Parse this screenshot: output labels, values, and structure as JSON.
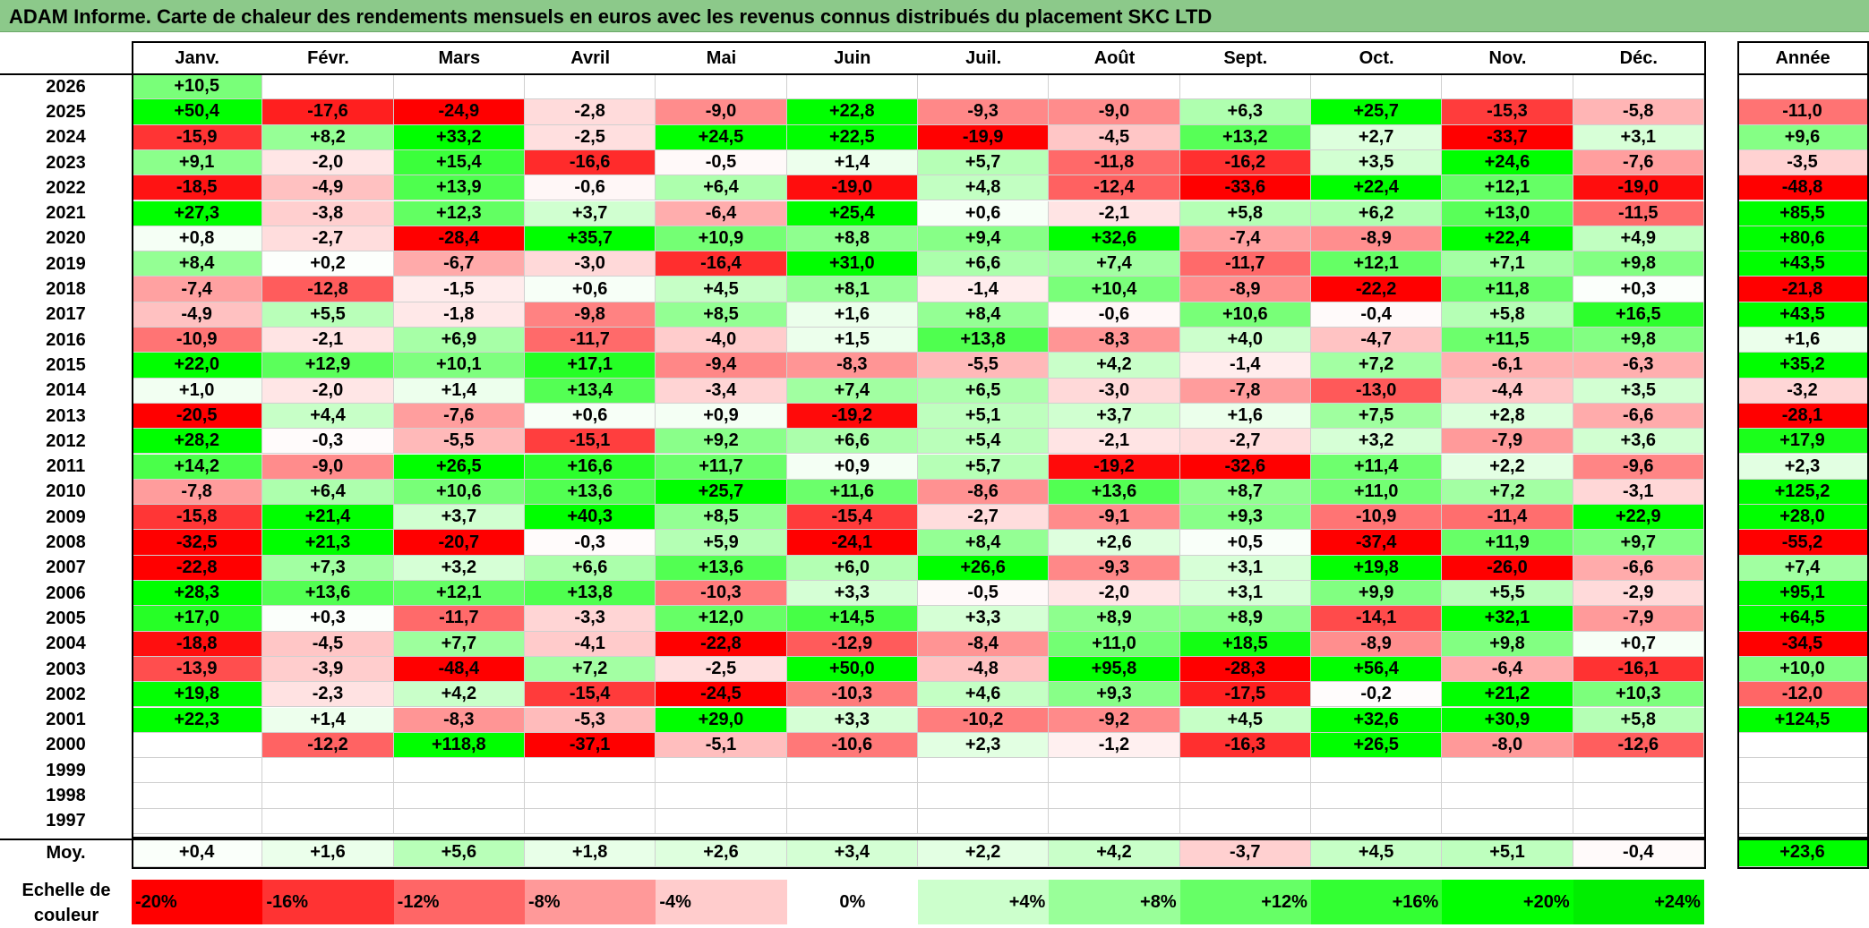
{
  "title": "ADAM Informe. Carte de chaleur des rendements mensuels en euros avec les revenus connus distribués du placement SKC LTD",
  "chart_data": {
    "type": "heatmap",
    "title": "ADAM Informe. Carte de chaleur des rendements mensuels en euros avec les revenus connus distribués du placement SKC LTD",
    "months": [
      "Janv.",
      "Févr.",
      "Mars",
      "Avril",
      "Mai",
      "Juin",
      "Juil.",
      "Août",
      "Sept.",
      "Oct.",
      "Nov.",
      "Déc."
    ],
    "year_header": "Année",
    "rows": [
      {
        "year": "2026",
        "values": [
          "+10,5",
          "",
          "",
          "",
          "",
          "",
          "",
          "",
          "",
          "",
          "",
          ""
        ],
        "annual": ""
      },
      {
        "year": "2025",
        "values": [
          "+50,4",
          "-17,6",
          "-24,9",
          "-2,8",
          "-9,0",
          "+22,8",
          "-9,3",
          "-9,0",
          "+6,3",
          "+25,7",
          "-15,3",
          "-5,8"
        ],
        "annual": "-11,0"
      },
      {
        "year": "2024",
        "values": [
          "-15,9",
          "+8,2",
          "+33,2",
          "-2,5",
          "+24,5",
          "+22,5",
          "-19,9",
          "-4,5",
          "+13,2",
          "+2,7",
          "-33,7",
          "+3,1"
        ],
        "annual": "+9,6"
      },
      {
        "year": "2023",
        "values": [
          "+9,1",
          "-2,0",
          "+15,4",
          "-16,6",
          "-0,5",
          "+1,4",
          "+5,7",
          "-11,8",
          "-16,2",
          "+3,5",
          "+24,6",
          "-7,6"
        ],
        "annual": "-3,5"
      },
      {
        "year": "2022",
        "values": [
          "-18,5",
          "-4,9",
          "+13,9",
          "-0,6",
          "+6,4",
          "-19,0",
          "+4,8",
          "-12,4",
          "-33,6",
          "+22,4",
          "+12,1",
          "-19,0"
        ],
        "annual": "-48,8"
      },
      {
        "year": "2021",
        "values": [
          "+27,3",
          "-3,8",
          "+12,3",
          "+3,7",
          "-6,4",
          "+25,4",
          "+0,6",
          "-2,1",
          "+5,8",
          "+6,2",
          "+13,0",
          "-11,5"
        ],
        "annual": "+85,5"
      },
      {
        "year": "2020",
        "values": [
          "+0,8",
          "-2,7",
          "-28,4",
          "+35,7",
          "+10,9",
          "+8,8",
          "+9,4",
          "+32,6",
          "-7,4",
          "-8,9",
          "+22,4",
          "+4,9"
        ],
        "annual": "+80,6"
      },
      {
        "year": "2019",
        "values": [
          "+8,4",
          "+0,2",
          "-6,7",
          "-3,0",
          "-16,4",
          "+31,0",
          "+6,6",
          "+7,4",
          "-11,7",
          "+12,1",
          "+7,1",
          "+9,8"
        ],
        "annual": "+43,5"
      },
      {
        "year": "2018",
        "values": [
          "-7,4",
          "-12,8",
          "-1,5",
          "+0,6",
          "+4,5",
          "+8,1",
          "-1,4",
          "+10,4",
          "-8,9",
          "-22,2",
          "+11,8",
          "+0,3"
        ],
        "annual": "-21,8"
      },
      {
        "year": "2017",
        "values": [
          "-4,9",
          "+5,5",
          "-1,8",
          "-9,8",
          "+8,5",
          "+1,6",
          "+8,4",
          "-0,6",
          "+10,6",
          "-0,4",
          "+5,8",
          "+16,5"
        ],
        "annual": "+43,5"
      },
      {
        "year": "2016",
        "values": [
          "-10,9",
          "-2,1",
          "+6,9",
          "-11,7",
          "-4,0",
          "+1,5",
          "+13,8",
          "-8,3",
          "+4,0",
          "-4,7",
          "+11,5",
          "+9,8"
        ],
        "annual": "+1,6"
      },
      {
        "year": "2015",
        "values": [
          "+22,0",
          "+12,9",
          "+10,1",
          "+17,1",
          "-9,4",
          "-8,3",
          "-5,5",
          "+4,2",
          "-1,4",
          "+7,2",
          "-6,1",
          "-6,3"
        ],
        "annual": "+35,2"
      },
      {
        "year": "2014",
        "values": [
          "+1,0",
          "-2,0",
          "+1,4",
          "+13,4",
          "-3,4",
          "+7,4",
          "+6,5",
          "-3,0",
          "-7,8",
          "-13,0",
          "-4,4",
          "+3,5"
        ],
        "annual": "-3,2"
      },
      {
        "year": "2013",
        "values": [
          "-20,5",
          "+4,4",
          "-7,6",
          "+0,6",
          "+0,9",
          "-19,2",
          "+5,1",
          "+3,7",
          "+1,6",
          "+7,5",
          "+2,8",
          "-6,6"
        ],
        "annual": "-28,1"
      },
      {
        "year": "2012",
        "values": [
          "+28,2",
          "-0,3",
          "-5,5",
          "-15,1",
          "+9,2",
          "+6,6",
          "+5,4",
          "-2,1",
          "-2,7",
          "+3,2",
          "-7,9",
          "+3,6"
        ],
        "annual": "+17,9"
      },
      {
        "year": "2011",
        "values": [
          "+14,2",
          "-9,0",
          "+26,5",
          "+16,6",
          "+11,7",
          "+0,9",
          "+5,7",
          "-19,2",
          "-32,6",
          "+11,4",
          "+2,2",
          "-9,6"
        ],
        "annual": "+2,3"
      },
      {
        "year": "2010",
        "values": [
          "-7,8",
          "+6,4",
          "+10,6",
          "+13,6",
          "+25,7",
          "+11,6",
          "-8,6",
          "+13,6",
          "+8,7",
          "+11,0",
          "+7,2",
          "-3,1"
        ],
        "annual": "+125,2"
      },
      {
        "year": "2009",
        "values": [
          "-15,8",
          "+21,4",
          "+3,7",
          "+40,3",
          "+8,5",
          "-15,4",
          "-2,7",
          "-9,1",
          "+9,3",
          "-10,9",
          "-11,4",
          "+22,9"
        ],
        "annual": "+28,0"
      },
      {
        "year": "2008",
        "values": [
          "-32,5",
          "+21,3",
          "-20,7",
          "-0,3",
          "+5,9",
          "-24,1",
          "+8,4",
          "+2,6",
          "+0,5",
          "-37,4",
          "+11,9",
          "+9,7"
        ],
        "annual": "-55,2"
      },
      {
        "year": "2007",
        "values": [
          "-22,8",
          "+7,3",
          "+3,2",
          "+6,6",
          "+13,6",
          "+6,0",
          "+26,6",
          "-9,3",
          "+3,1",
          "+19,8",
          "-26,0",
          "-6,6"
        ],
        "annual": "+7,4"
      },
      {
        "year": "2006",
        "values": [
          "+28,3",
          "+13,6",
          "+12,1",
          "+13,8",
          "-10,3",
          "+3,3",
          "-0,5",
          "-2,0",
          "+3,1",
          "+9,9",
          "+5,5",
          "-2,9"
        ],
        "annual": "+95,1"
      },
      {
        "year": "2005",
        "values": [
          "+17,0",
          "+0,3",
          "-11,7",
          "-3,3",
          "+12,0",
          "+14,5",
          "+3,3",
          "+8,9",
          "+8,9",
          "-14,1",
          "+32,1",
          "-7,9"
        ],
        "annual": "+64,5"
      },
      {
        "year": "2004",
        "values": [
          "-18,8",
          "-4,5",
          "+7,7",
          "-4,1",
          "-22,8",
          "-12,9",
          "-8,4",
          "+11,0",
          "+18,5",
          "-8,9",
          "+9,8",
          "+0,7"
        ],
        "annual": "-34,5"
      },
      {
        "year": "2003",
        "values": [
          "-13,9",
          "-3,9",
          "-48,4",
          "+7,2",
          "-2,5",
          "+50,0",
          "-4,8",
          "+95,8",
          "-28,3",
          "+56,4",
          "-6,4",
          "-16,1"
        ],
        "annual": "+10,0"
      },
      {
        "year": "2002",
        "values": [
          "+19,8",
          "-2,3",
          "+4,2",
          "-15,4",
          "-24,5",
          "-10,3",
          "+4,6",
          "+9,3",
          "-17,5",
          "-0,2",
          "+21,2",
          "+10,3"
        ],
        "annual": "-12,0"
      },
      {
        "year": "2001",
        "values": [
          "+22,3",
          "+1,4",
          "-8,3",
          "-5,3",
          "+29,0",
          "+3,3",
          "-10,2",
          "-9,2",
          "+4,5",
          "+32,6",
          "+30,9",
          "+5,8"
        ],
        "annual": "+124,5"
      },
      {
        "year": "2000",
        "values": [
          "",
          "-12,2",
          "+118,8",
          "-37,1",
          "-5,1",
          "-10,6",
          "+2,3",
          "-1,2",
          "-16,3",
          "+26,5",
          "-8,0",
          "-12,6"
        ],
        "annual": ""
      },
      {
        "year": "1999",
        "values": [
          "",
          "",
          "",
          "",
          "",
          "",
          "",
          "",
          "",
          "",
          "",
          ""
        ],
        "annual": ""
      },
      {
        "year": "1998",
        "values": [
          "",
          "",
          "",
          "",
          "",
          "",
          "",
          "",
          "",
          "",
          "",
          ""
        ],
        "annual": ""
      },
      {
        "year": "1997",
        "values": [
          "",
          "",
          "",
          "",
          "",
          "",
          "",
          "",
          "",
          "",
          "",
          ""
        ],
        "annual": ""
      }
    ],
    "average": {
      "label": "Moy.",
      "values": [
        "+0,4",
        "+1,6",
        "+5,6",
        "+1,8",
        "+2,6",
        "+3,4",
        "+2,2",
        "+4,2",
        "-3,7",
        "+4,5",
        "+5,1",
        "-0,4"
      ],
      "annual": "+23,6"
    },
    "color_scale": {
      "label": "Echelle de couleur",
      "stops": [
        {
          "label": "-20%",
          "color": "#ff0000"
        },
        {
          "label": "-16%",
          "color": "#ff3333"
        },
        {
          "label": "-12%",
          "color": "#ff6666"
        },
        {
          "label": "-8%",
          "color": "#ff9999"
        },
        {
          "label": "-4%",
          "color": "#ffcccc"
        },
        {
          "label": "0%",
          "color": "#ffffff"
        },
        {
          "label": "+4%",
          "color": "#ccffcc"
        },
        {
          "label": "+8%",
          "color": "#99ff99"
        },
        {
          "label": "+12%",
          "color": "#66ff66"
        },
        {
          "label": "+16%",
          "color": "#33ff33"
        },
        {
          "label": "+20%",
          "color": "#00ff00"
        },
        {
          "label": "+24%",
          "color": "#00ee00"
        }
      ]
    }
  }
}
